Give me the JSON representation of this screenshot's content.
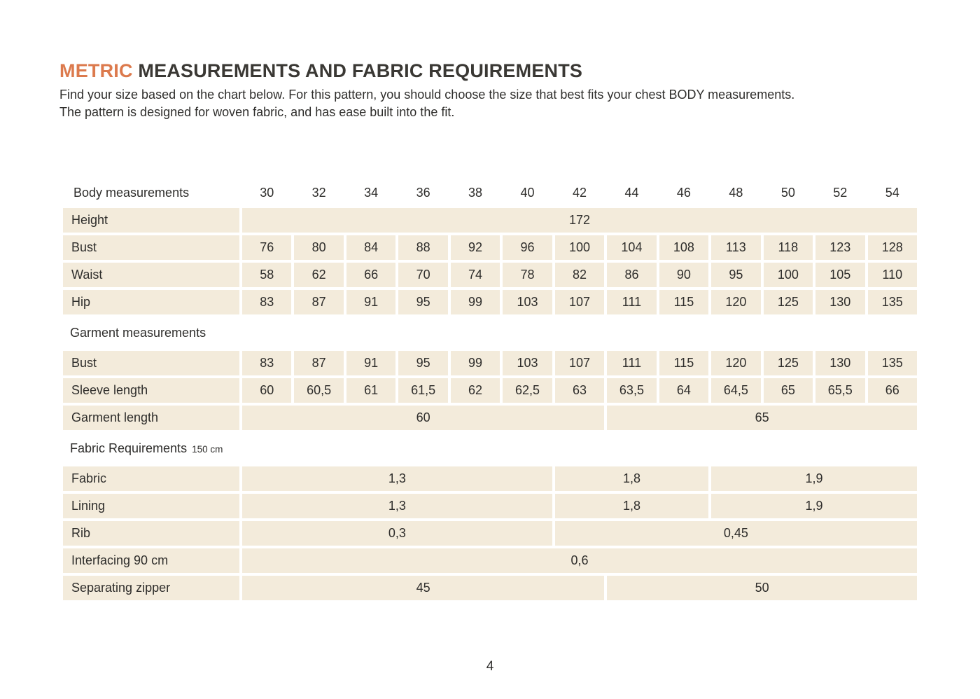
{
  "title": {
    "accent": "METRIC",
    "rest": " MEASUREMENTS AND FABRIC REQUIREMENTS"
  },
  "intro": {
    "line1": "Find your size based on the chart below. For this pattern, you should choose the size that best fits your chest BODY measurements.",
    "line2": "The pattern is designed for woven fabric, and has ease built into the fit."
  },
  "colors": {
    "accent_orange": "#dc7a4d",
    "cell_beige": "#f3ebdb",
    "text_dark": "#2e2d2b"
  },
  "table": {
    "header_label": "Body measurements",
    "sizes": [
      "30",
      "32",
      "34",
      "36",
      "38",
      "40",
      "42",
      "44",
      "46",
      "48",
      "50",
      "52",
      "54"
    ],
    "sections": [
      {
        "heading": null,
        "rows": [
          {
            "label": "Height",
            "cells": [
              {
                "value": "172",
                "span": 13
              }
            ]
          },
          {
            "label": "Bust",
            "cells": [
              {
                "value": "76",
                "span": 1
              },
              {
                "value": "80",
                "span": 1
              },
              {
                "value": "84",
                "span": 1
              },
              {
                "value": "88",
                "span": 1
              },
              {
                "value": "92",
                "span": 1
              },
              {
                "value": "96",
                "span": 1
              },
              {
                "value": "100",
                "span": 1
              },
              {
                "value": "104",
                "span": 1
              },
              {
                "value": "108",
                "span": 1
              },
              {
                "value": "113",
                "span": 1
              },
              {
                "value": "118",
                "span": 1
              },
              {
                "value": "123",
                "span": 1
              },
              {
                "value": "128",
                "span": 1
              }
            ]
          },
          {
            "label": "Waist",
            "cells": [
              {
                "value": "58",
                "span": 1
              },
              {
                "value": "62",
                "span": 1
              },
              {
                "value": "66",
                "span": 1
              },
              {
                "value": "70",
                "span": 1
              },
              {
                "value": "74",
                "span": 1
              },
              {
                "value": "78",
                "span": 1
              },
              {
                "value": "82",
                "span": 1
              },
              {
                "value": "86",
                "span": 1
              },
              {
                "value": "90",
                "span": 1
              },
              {
                "value": "95",
                "span": 1
              },
              {
                "value": "100",
                "span": 1
              },
              {
                "value": "105",
                "span": 1
              },
              {
                "value": "110",
                "span": 1
              }
            ]
          },
          {
            "label": "Hip",
            "cells": [
              {
                "value": "83",
                "span": 1
              },
              {
                "value": "87",
                "span": 1
              },
              {
                "value": "91",
                "span": 1
              },
              {
                "value": "95",
                "span": 1
              },
              {
                "value": "99",
                "span": 1
              },
              {
                "value": "103",
                "span": 1
              },
              {
                "value": "107",
                "span": 1
              },
              {
                "value": "111",
                "span": 1
              },
              {
                "value": "115",
                "span": 1
              },
              {
                "value": "120",
                "span": 1
              },
              {
                "value": "125",
                "span": 1
              },
              {
                "value": "130",
                "span": 1
              },
              {
                "value": "135",
                "span": 1
              }
            ]
          }
        ]
      },
      {
        "heading": "Garment measurements",
        "heading_suffix": null,
        "rows": [
          {
            "label": "Bust",
            "cells": [
              {
                "value": "83",
                "span": 1
              },
              {
                "value": "87",
                "span": 1
              },
              {
                "value": "91",
                "span": 1
              },
              {
                "value": "95",
                "span": 1
              },
              {
                "value": "99",
                "span": 1
              },
              {
                "value": "103",
                "span": 1
              },
              {
                "value": "107",
                "span": 1
              },
              {
                "value": "111",
                "span": 1
              },
              {
                "value": "115",
                "span": 1
              },
              {
                "value": "120",
                "span": 1
              },
              {
                "value": "125",
                "span": 1
              },
              {
                "value": "130",
                "span": 1
              },
              {
                "value": "135",
                "span": 1
              }
            ]
          },
          {
            "label": "Sleeve length",
            "cells": [
              {
                "value": "60",
                "span": 1
              },
              {
                "value": "60,5",
                "span": 1
              },
              {
                "value": "61",
                "span": 1
              },
              {
                "value": "61,5",
                "span": 1
              },
              {
                "value": "62",
                "span": 1
              },
              {
                "value": "62,5",
                "span": 1
              },
              {
                "value": "63",
                "span": 1
              },
              {
                "value": "63,5",
                "span": 1
              },
              {
                "value": "64",
                "span": 1
              },
              {
                "value": "64,5",
                "span": 1
              },
              {
                "value": "65",
                "span": 1
              },
              {
                "value": "65,5",
                "span": 1
              },
              {
                "value": "66",
                "span": 1
              }
            ]
          },
          {
            "label": "Garment length",
            "cells": [
              {
                "value": "60",
                "span": 7
              },
              {
                "value": "65",
                "span": 6
              }
            ]
          }
        ]
      },
      {
        "heading": "Fabric Requirements",
        "heading_suffix": "150 cm",
        "rows": [
          {
            "label": "Fabric",
            "cells": [
              {
                "value": "1,3",
                "span": 6
              },
              {
                "value": "1,8",
                "span": 3
              },
              {
                "value": "1,9",
                "span": 4
              }
            ]
          },
          {
            "label": "Lining",
            "cells": [
              {
                "value": "1,3",
                "span": 6
              },
              {
                "value": "1,8",
                "span": 3
              },
              {
                "value": "1,9",
                "span": 4
              }
            ]
          },
          {
            "label": "Rib",
            "cells": [
              {
                "value": "0,3",
                "span": 6
              },
              {
                "value": "0,45",
                "span": 7
              }
            ]
          },
          {
            "label": "Interfacing 90 cm",
            "cells": [
              {
                "value": "0,6",
                "span": 13
              }
            ]
          },
          {
            "label": "Separating zipper",
            "cells": [
              {
                "value": "45",
                "span": 7
              },
              {
                "value": "50",
                "span": 6
              }
            ]
          }
        ]
      }
    ]
  },
  "page_number": "4"
}
